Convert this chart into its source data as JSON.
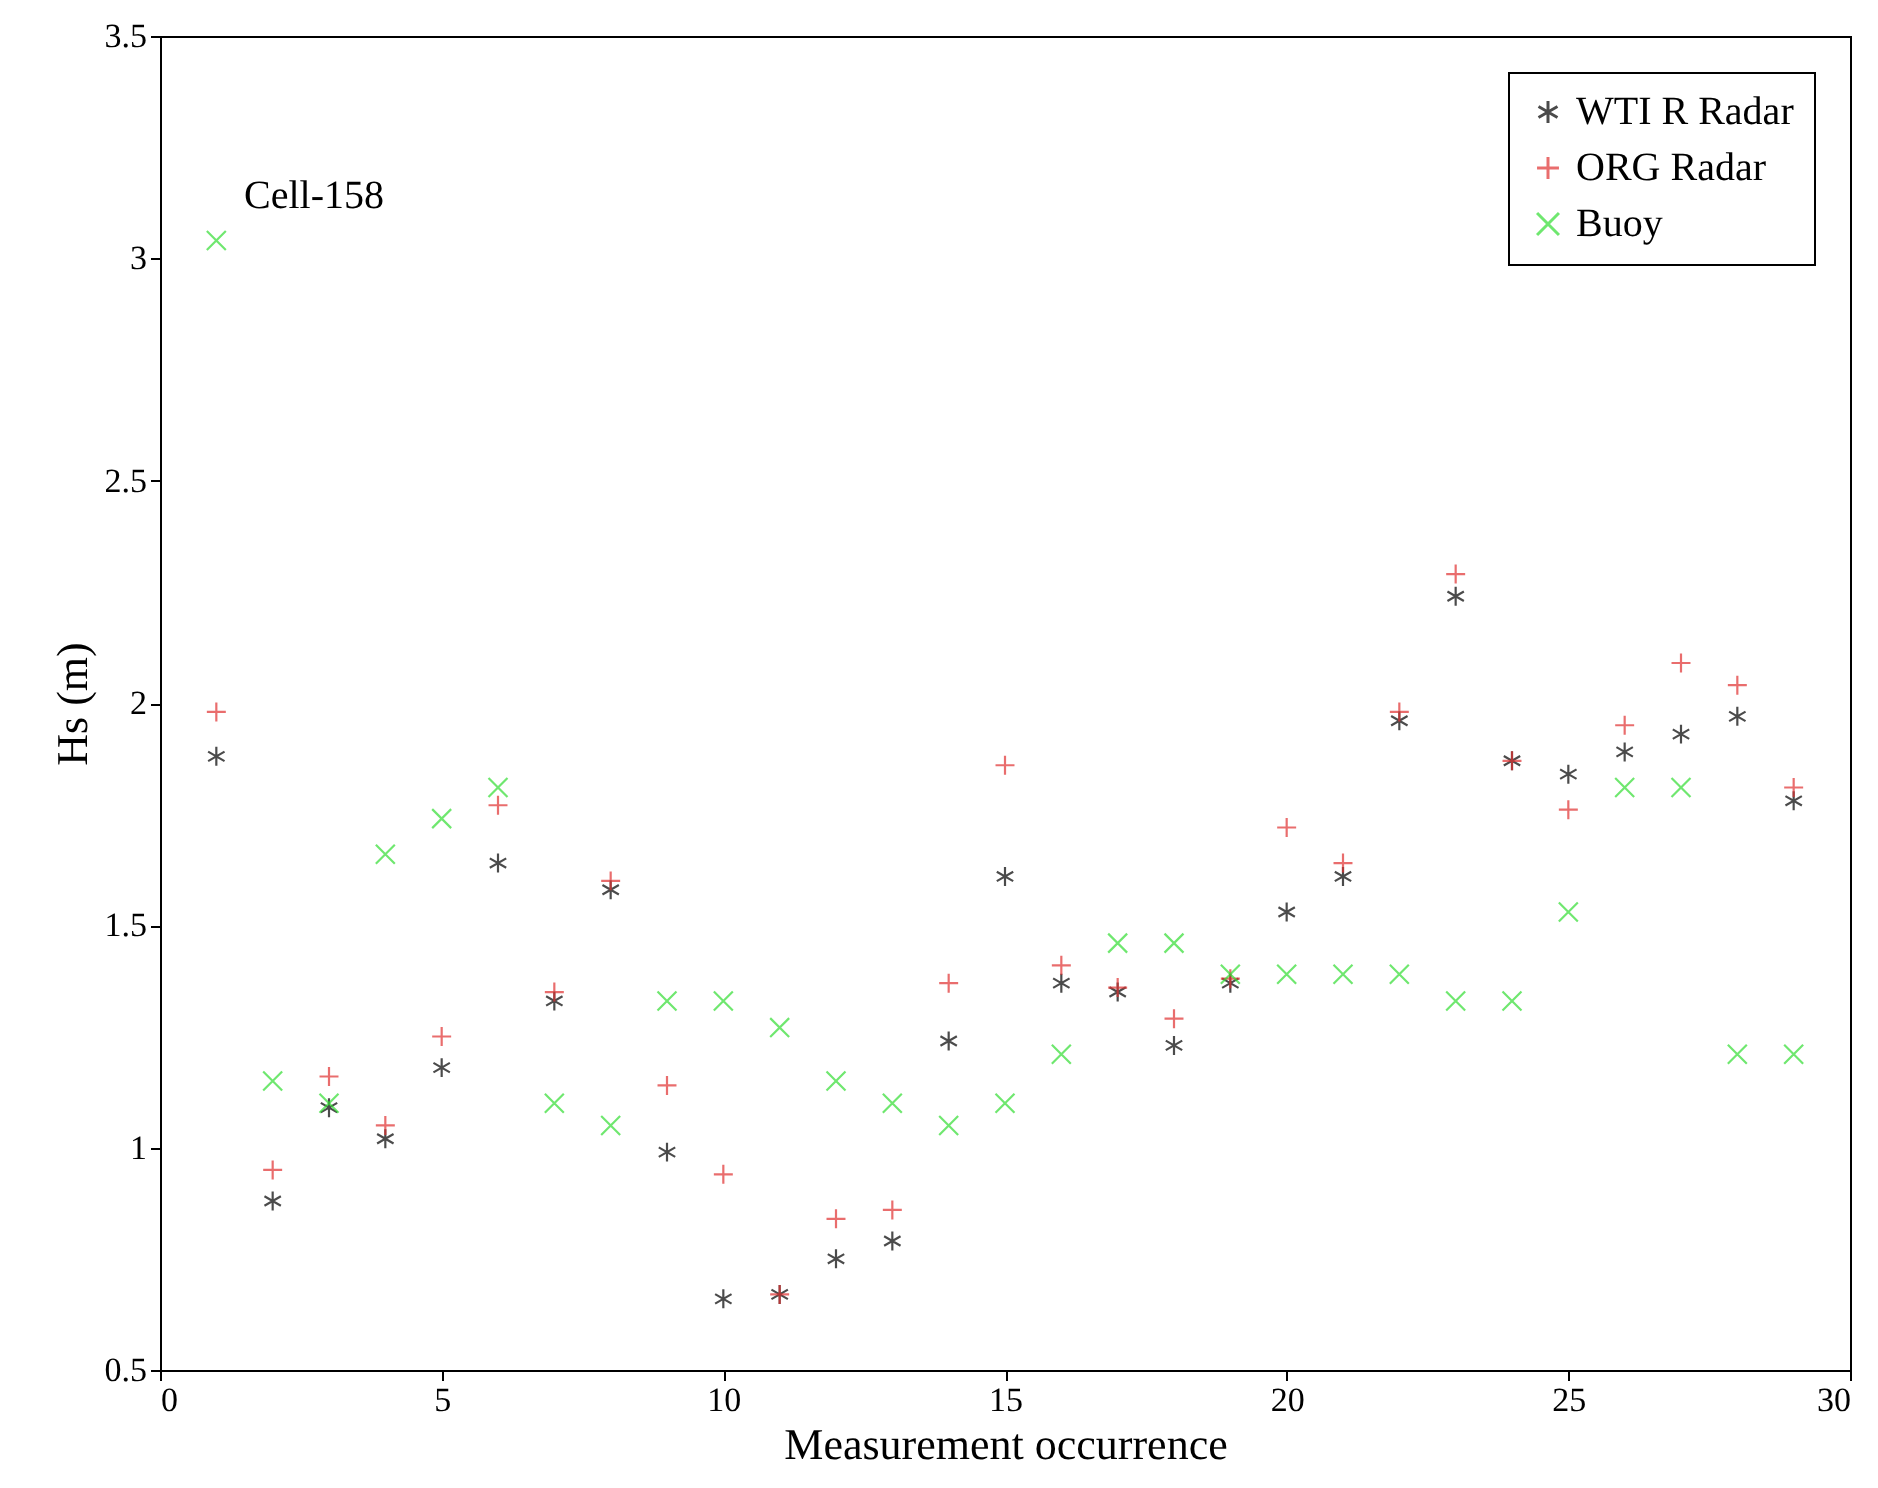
{
  "chart_data": {
    "type": "scatter",
    "xlabel": "Measurement occurrence",
    "ylabel": "Hs (m)",
    "annotations": [
      "Cell-158"
    ],
    "x": [
      1,
      2,
      3,
      4,
      5,
      6,
      7,
      8,
      9,
      10,
      11,
      12,
      13,
      14,
      15,
      16,
      17,
      18,
      19,
      20,
      21,
      22,
      23,
      24,
      25,
      26,
      27,
      28,
      29
    ],
    "xlim": [
      0,
      30
    ],
    "xticks": [
      0,
      5,
      10,
      15,
      20,
      25,
      30
    ],
    "ylim": [
      0.5,
      3.5
    ],
    "yticks": [
      0.5,
      1,
      1.5,
      2,
      2.5,
      3,
      3.5
    ],
    "grid": false,
    "legend": "top right",
    "series": [
      {
        "name": "WTI R Radar",
        "color": "#000000",
        "values": [
          1.88,
          0.88,
          1.09,
          1.02,
          1.18,
          1.64,
          1.33,
          1.58,
          0.99,
          0.66,
          0.67,
          0.75,
          0.79,
          1.24,
          1.61,
          1.37,
          1.35,
          1.23,
          1.37,
          1.53,
          1.61,
          1.96,
          2.24,
          1.87,
          1.84,
          1.89,
          1.93,
          1.97,
          1.78
        ]
      },
      {
        "name": "ORG Radar",
        "color": "#e03030",
        "marker": "cross",
        "values": [
          1.98,
          0.95,
          1.16,
          1.05,
          1.25,
          1.77,
          1.35,
          1.6,
          1.14,
          0.94,
          0.67,
          0.84,
          0.86,
          1.37,
          1.86,
          1.41,
          1.36,
          1.29,
          1.38,
          1.72,
          1.64,
          1.98,
          2.29,
          1.87,
          1.76,
          1.95,
          2.09,
          2.04,
          1.81
        ]
      },
      {
        "name": "Buoy",
        "color": "#33dd33",
        "marker": "x",
        "values": [
          3.04,
          1.15,
          1.1,
          1.66,
          1.74,
          1.81,
          1.1,
          1.05,
          1.33,
          1.33,
          1.27,
          1.15,
          1.1,
          1.05,
          1.1,
          1.21,
          1.46,
          1.46,
          1.39,
          1.39,
          1.39,
          1.39,
          1.33,
          1.33,
          1.53,
          1.81,
          1.81,
          1.21,
          1.21
        ]
      }
    ]
  }
}
